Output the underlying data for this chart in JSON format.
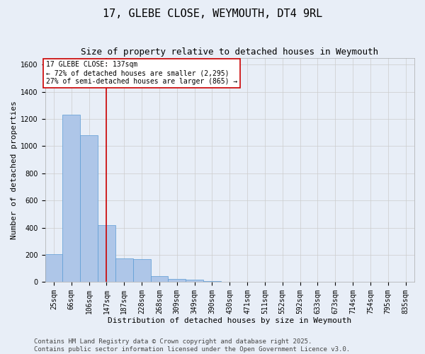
{
  "title": "17, GLEBE CLOSE, WEYMOUTH, DT4 9RL",
  "subtitle": "Size of property relative to detached houses in Weymouth",
  "xlabel": "Distribution of detached houses by size in Weymouth",
  "ylabel": "Number of detached properties",
  "categories": [
    "25sqm",
    "66sqm",
    "106sqm",
    "147sqm",
    "187sqm",
    "228sqm",
    "268sqm",
    "309sqm",
    "349sqm",
    "390sqm",
    "430sqm",
    "471sqm",
    "511sqm",
    "552sqm",
    "592sqm",
    "633sqm",
    "673sqm",
    "714sqm",
    "754sqm",
    "795sqm",
    "835sqm"
  ],
  "values": [
    205,
    1230,
    1080,
    420,
    175,
    170,
    45,
    25,
    15,
    8,
    3,
    1,
    0,
    0,
    0,
    0,
    0,
    0,
    0,
    0,
    0
  ],
  "bar_color": "#aec6e8",
  "bar_edge_color": "#5b9bd5",
  "red_line_x": 3.5,
  "annotation_text": "17 GLEBE CLOSE: 137sqm\n← 72% of detached houses are smaller (2,295)\n27% of semi-detached houses are larger (865) →",
  "annotation_box_color": "#ffffff",
  "annotation_box_edge_color": "#cc0000",
  "red_line_color": "#cc0000",
  "ylim": [
    0,
    1650
  ],
  "yticks": [
    0,
    200,
    400,
    600,
    800,
    1000,
    1200,
    1400,
    1600
  ],
  "grid_color": "#cccccc",
  "background_color": "#e8eef7",
  "plot_bg_color": "#e8eef7",
  "footer_text": "Contains HM Land Registry data © Crown copyright and database right 2025.\nContains public sector information licensed under the Open Government Licence v3.0.",
  "title_fontsize": 11,
  "subtitle_fontsize": 9,
  "xlabel_fontsize": 8,
  "ylabel_fontsize": 8,
  "tick_fontsize": 7,
  "footer_fontsize": 6.5,
  "annotation_fontsize": 7
}
